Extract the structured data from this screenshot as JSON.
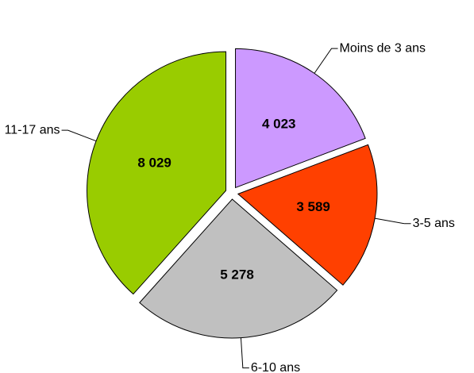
{
  "chart_data": {
    "type": "pie",
    "categories": [
      "Moins de 3 ans",
      "3-5 ans",
      "6-10 ans",
      "11-17 ans"
    ],
    "values": [
      4023,
      3589,
      5278,
      8029
    ],
    "value_labels": [
      "4 023",
      "3 589",
      "5 278",
      "8 029"
    ],
    "colors": [
      "#cc99ff",
      "#ff4000",
      "#c0c0c0",
      "#99cc00"
    ]
  }
}
